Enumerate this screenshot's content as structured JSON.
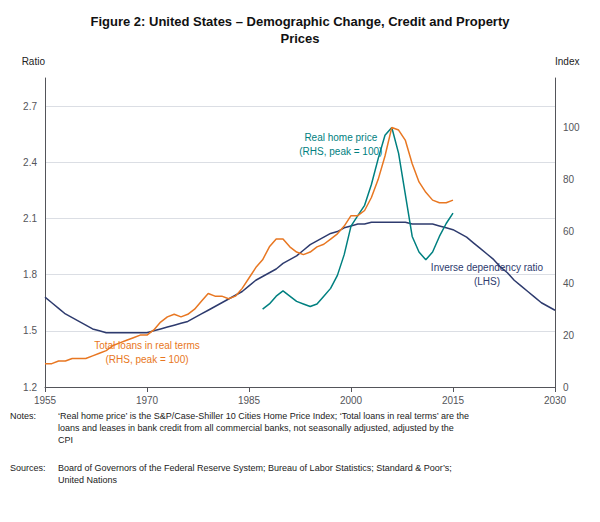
{
  "chart_data": {
    "type": "line",
    "title": "Figure 2: United States – Demographic Change, Credit and Property\nPrices",
    "y_label": "Ratio",
    "y2_label": "Index",
    "xlim": [
      1955,
      2030
    ],
    "xticks": [
      1955,
      1970,
      1985,
      2000,
      2015,
      2030
    ],
    "ylim": [
      1.2,
      2.85
    ],
    "yticks": [
      1.2,
      1.5,
      1.8,
      2.1,
      2.4,
      2.7
    ],
    "y2lim": [
      0,
      119.05
    ],
    "y2ticks": [
      0,
      20,
      40,
      60,
      80,
      100
    ],
    "grid": true,
    "series": [
      {
        "color": "#2e3b6e",
        "axis": "y",
        "x": [
          1955,
          1956,
          1957,
          1958,
          1959,
          1960,
          1961,
          1962,
          1963,
          1964,
          1965,
          1966,
          1967,
          1968,
          1969,
          1970,
          1971,
          1972,
          1973,
          1974,
          1975,
          1976,
          1977,
          1978,
          1979,
          1980,
          1981,
          1982,
          1983,
          1984,
          1985,
          1986,
          1987,
          1988,
          1989,
          1990,
          1991,
          1992,
          1993,
          1994,
          1995,
          1996,
          1997,
          1998,
          1999,
          2000,
          2001,
          2002,
          2003,
          2004,
          2005,
          2006,
          2007,
          2008,
          2009,
          2010,
          2011,
          2012,
          2013,
          2014,
          2015,
          2016,
          2017,
          2018,
          2019,
          2020,
          2021,
          2022,
          2023,
          2024,
          2025,
          2026,
          2027,
          2028,
          2029,
          2030
        ],
        "values": [
          1.68,
          1.65,
          1.62,
          1.59,
          1.57,
          1.55,
          1.53,
          1.51,
          1.5,
          1.49,
          1.49,
          1.49,
          1.49,
          1.49,
          1.49,
          1.49,
          1.5,
          1.51,
          1.52,
          1.53,
          1.54,
          1.55,
          1.57,
          1.59,
          1.61,
          1.63,
          1.65,
          1.67,
          1.69,
          1.71,
          1.74,
          1.77,
          1.79,
          1.81,
          1.83,
          1.86,
          1.88,
          1.9,
          1.93,
          1.96,
          1.98,
          2.0,
          2.02,
          2.03,
          2.05,
          2.06,
          2.07,
          2.07,
          2.08,
          2.08,
          2.08,
          2.08,
          2.08,
          2.08,
          2.07,
          2.07,
          2.07,
          2.07,
          2.06,
          2.05,
          2.04,
          2.02,
          2.0,
          1.97,
          1.94,
          1.91,
          1.88,
          1.84,
          1.81,
          1.77,
          1.74,
          1.71,
          1.68,
          1.65,
          1.63,
          1.61
        ]
      },
      {
        "color": "#008080",
        "axis": "y2",
        "x": [
          1987,
          1988,
          1989,
          1990,
          1991,
          1992,
          1993,
          1994,
          1995,
          1996,
          1997,
          1998,
          1999,
          2000,
          2001,
          2002,
          2003,
          2004,
          2005,
          2006,
          2007,
          2008,
          2009,
          2010,
          2011,
          2012,
          2013,
          2014,
          2015
        ],
        "values": [
          30,
          32,
          35,
          37,
          35,
          33,
          32,
          31,
          32,
          35,
          38,
          43,
          51,
          62,
          66,
          70,
          78,
          88,
          97,
          100,
          90,
          74,
          58,
          52,
          49,
          52,
          58,
          63,
          67
        ]
      },
      {
        "color": "#e87722",
        "axis": "y2",
        "x": [
          1955,
          1956,
          1957,
          1958,
          1959,
          1960,
          1961,
          1962,
          1963,
          1964,
          1965,
          1966,
          1967,
          1968,
          1969,
          1970,
          1971,
          1972,
          1973,
          1974,
          1975,
          1976,
          1977,
          1978,
          1979,
          1980,
          1981,
          1982,
          1983,
          1984,
          1985,
          1986,
          1987,
          1988,
          1989,
          1990,
          1991,
          1992,
          1993,
          1994,
          1995,
          1996,
          1997,
          1998,
          1999,
          2000,
          2001,
          2002,
          2003,
          2004,
          2005,
          2006,
          2007,
          2008,
          2009,
          2010,
          2011,
          2012,
          2013,
          2014,
          2015
        ],
        "values": [
          9,
          9,
          10,
          10,
          11,
          11,
          11,
          12,
          13,
          14,
          16,
          17,
          18,
          19,
          20,
          20,
          22,
          25,
          27,
          28,
          27,
          28,
          30,
          33,
          36,
          35,
          35,
          34,
          35,
          38,
          42,
          46,
          49,
          54,
          57,
          57,
          54,
          52,
          51,
          52,
          54,
          55,
          57,
          59,
          62,
          66,
          66,
          68,
          73,
          80,
          89,
          100,
          99,
          95,
          86,
          79,
          75,
          72,
          71,
          71,
          72
        ]
      }
    ],
    "annotations": [
      {
        "text": "Real home price\n(RHS, peak = 100)",
        "x": 1998.5,
        "y": 88,
        "axis": "y2",
        "color": "#008080"
      },
      {
        "text": "Total loans in real terms\n(RHS, peak = 100)",
        "x": 1970,
        "y": 8,
        "axis": "y2",
        "color": "#e87722"
      },
      {
        "text": "Inverse dependency ratio\n(LHS)",
        "x": 2020,
        "y": 38,
        "axis": "y2",
        "color": "#2e3b6e"
      }
    ],
    "notes_label": "Notes:",
    "notes": "‘Real home price’ is the S&P/Case-Shiller 10 Cities Home Price Index; ‘Total loans in real terms’ are the\nloans and leases in bank credit from all commercial banks, not seasonally adjusted, adjusted by the\nCPI",
    "sources_label": "Sources:",
    "sources": "Board of Governors of the Federal Reserve System; Bureau of Labor Statistics; Standard & Poor’s;\nUnited Nations"
  }
}
